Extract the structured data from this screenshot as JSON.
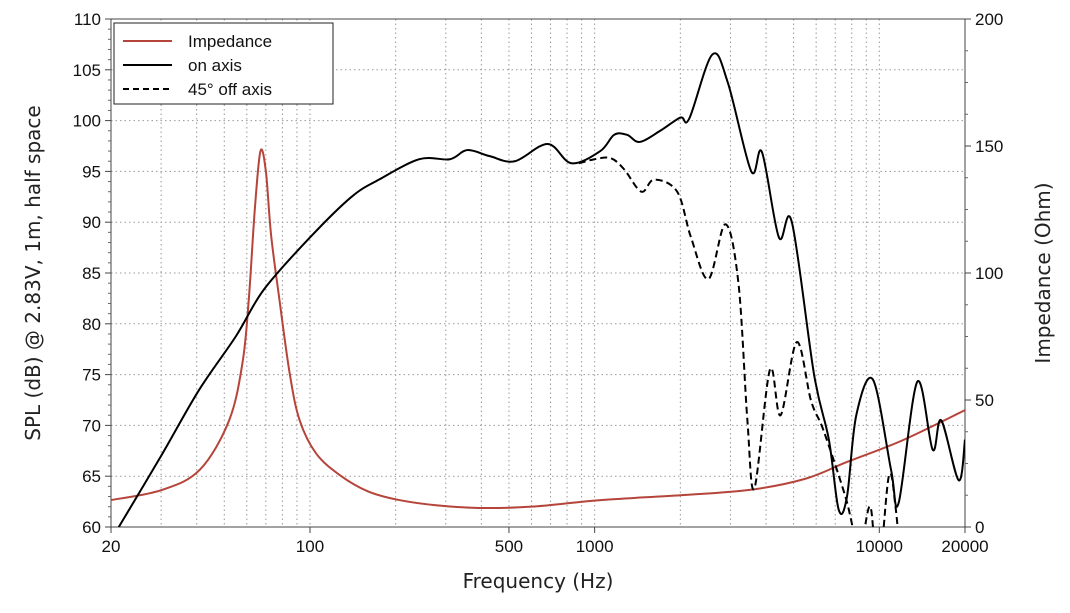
{
  "chart_data": {
    "type": "line",
    "xlabel": "Frequency (Hz)",
    "ylabel": "SPL (dB) @ 2.83V, 1m, half space",
    "y2label": "Impedance (Ohm)",
    "xscale": "log",
    "xlim": [
      20,
      20000
    ],
    "ylim": [
      60,
      110
    ],
    "y2lim": [
      0,
      200
    ],
    "xticks": [
      "20",
      "100",
      "500",
      "1000",
      "10000",
      "20000"
    ],
    "xtick_values": [
      20,
      100,
      500,
      1000,
      10000,
      20000
    ],
    "yticks": [
      "60",
      "65",
      "70",
      "75",
      "80",
      "85",
      "90",
      "95",
      "100",
      "105",
      "110"
    ],
    "y2ticks": [
      "0",
      "50",
      "100",
      "150",
      "200"
    ],
    "grid": true,
    "legend_position": "top-left",
    "colors": {
      "impedance": "#b5443a",
      "on_axis": "#000000",
      "off_axis": "#000000"
    },
    "series": [
      {
        "name": "Impedance",
        "axis": "right",
        "style": "solid",
        "color": "#b5443a",
        "x": [
          20,
          30,
          41,
          52,
          58,
          61,
          64,
          67,
          70,
          73,
          78,
          85,
          92,
          105,
          127,
          160,
          206,
          280,
          392,
          600,
          1050,
          2000,
          3500,
          5500,
          7700,
          12000,
          20000
        ],
        "y": [
          10.6,
          14.5,
          22.5,
          42,
          65,
          90,
          125,
          148,
          140,
          115,
          90,
          60,
          42,
          29,
          20.5,
          14,
          10.6,
          8.5,
          7.5,
          8,
          10.6,
          12.5,
          14.6,
          19,
          25.6,
          34,
          46
        ]
      },
      {
        "name": "on axis",
        "axis": "left",
        "style": "solid",
        "color": "#000000",
        "x": [
          21.3,
          30,
          40.8,
          55,
          69,
          100,
          140,
          175,
          242,
          310,
          357,
          428,
          524,
          684,
          829,
          1047,
          1171,
          1300,
          1440,
          1700,
          2000,
          2150,
          2590,
          2940,
          3550,
          3870,
          4440,
          4930,
          5900,
          6650,
          7200,
          7700,
          8300,
          9500,
          11000,
          11700,
          13600,
          15400,
          16500,
          19000,
          20000
        ],
        "y": [
          60,
          67,
          73.5,
          78.8,
          83.4,
          88.5,
          92.5,
          94.2,
          96.2,
          96.2,
          97.1,
          96.5,
          96,
          97.7,
          95.8,
          97,
          98.6,
          98.6,
          97.9,
          99,
          100.3,
          100.2,
          106.5,
          103.7,
          95,
          96.9,
          88.5,
          90,
          75,
          68.6,
          61.7,
          63,
          71,
          74.5,
          65.6,
          62.4,
          74.3,
          67.6,
          70.5,
          64.6,
          68.6
        ]
      },
      {
        "name": "45° off axis",
        "axis": "left",
        "style": "dashed",
        "color": "#000000",
        "x": [
          880,
          1000,
          1140,
          1270,
          1460,
          1620,
          1950,
          2180,
          2510,
          2880,
          3200,
          3440,
          3640,
          4130,
          4500,
          5130,
          5760,
          6370,
          7600,
          8500,
          9300,
          9900,
          10800,
          11400,
          12000
        ],
        "y": [
          95.8,
          96.2,
          96.3,
          95.2,
          93,
          94.2,
          93,
          88.5,
          84.4,
          89.8,
          84,
          70.5,
          63.8,
          75.5,
          71,
          78.2,
          72.4,
          69.5,
          63,
          58,
          62,
          55,
          65,
          62,
          55
        ]
      }
    ]
  }
}
